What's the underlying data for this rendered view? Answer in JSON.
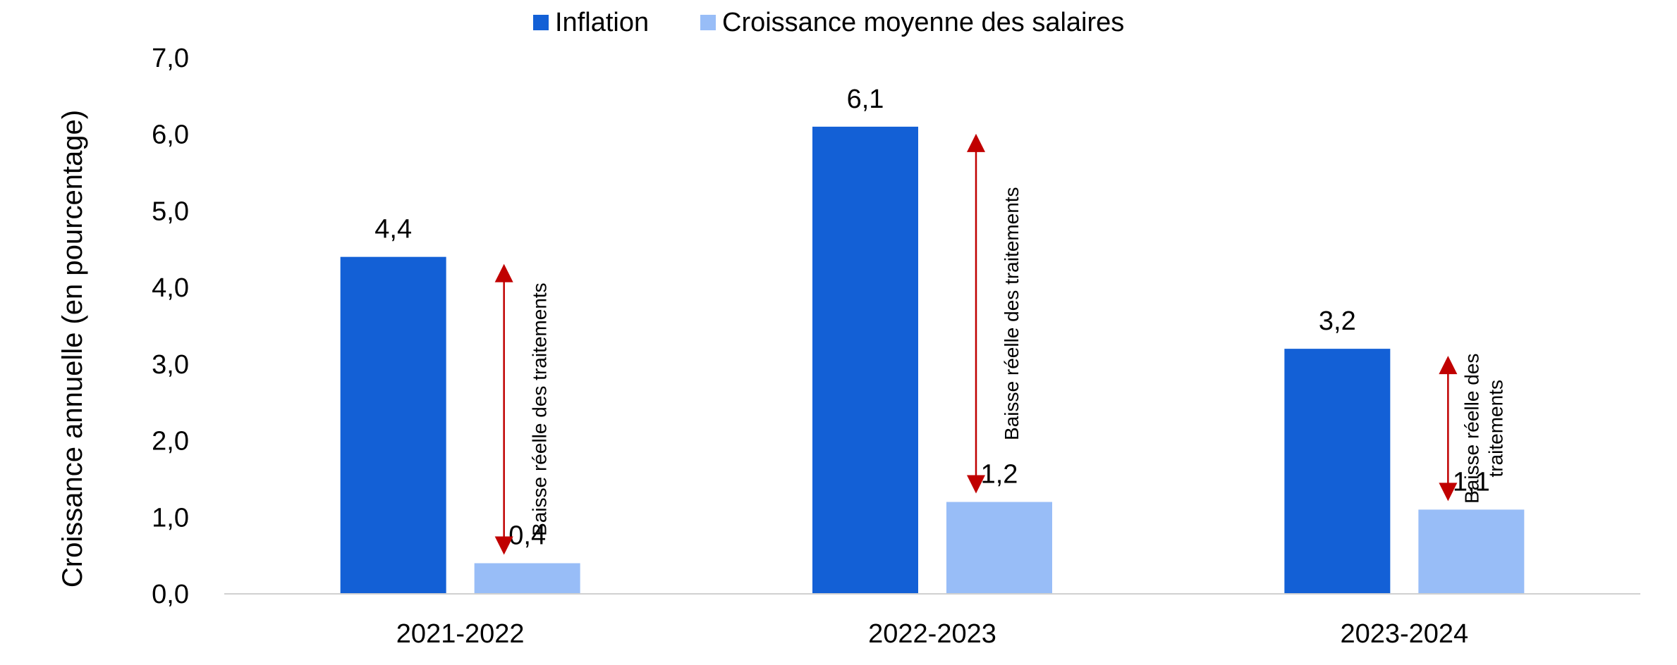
{
  "chart_data": {
    "type": "bar",
    "categories": [
      "2021-2022",
      "2022-2023",
      "2023-2024"
    ],
    "series": [
      {
        "name": "Inflation",
        "color": "#1360D6",
        "values": [
          4.4,
          6.1,
          3.2
        ],
        "labels": [
          "4,4",
          "6,1",
          "3,2"
        ]
      },
      {
        "name": "Croissance moyenne des salaires",
        "color": "#98BDF7",
        "values": [
          0.4,
          1.2,
          1.1
        ],
        "labels": [
          "0,4",
          "1,2",
          "1,1"
        ]
      }
    ],
    "ylabel": "Croissance annuelle (en pourcentage)",
    "ylim": [
      0,
      7
    ],
    "yticks": [
      0,
      1,
      2,
      3,
      4,
      5,
      6,
      7
    ],
    "ytick_labels": [
      "0,0",
      "1,0",
      "2,0",
      "3,0",
      "4,0",
      "5,0",
      "6,0",
      "7,0"
    ],
    "grid": false,
    "legend_position": "top-center",
    "annotations": [
      {
        "category": "2021-2022",
        "from": 4.4,
        "to": 0.4,
        "lines": [
          "Baisse réelle des traitements"
        ]
      },
      {
        "category": "2022-2023",
        "from": 6.1,
        "to": 1.2,
        "lines": [
          "Baisse réelle des traitements"
        ]
      },
      {
        "category": "2023-2024",
        "from": 3.2,
        "to": 1.1,
        "lines": [
          "Baisse réelle des",
          "traitements"
        ]
      }
    ],
    "annotation_color": "#C00000"
  }
}
